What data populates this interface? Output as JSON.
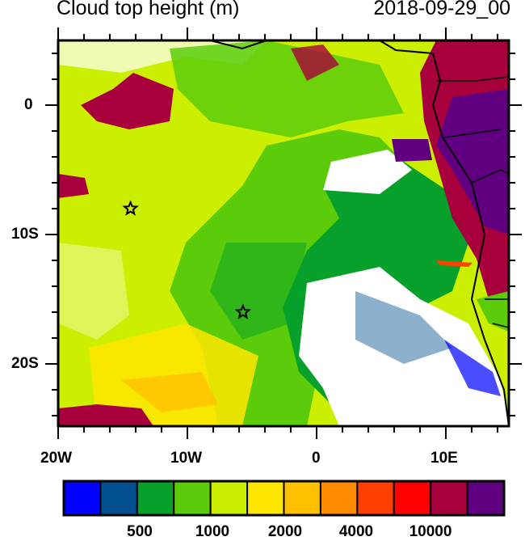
{
  "title": "Cloud top height (m)",
  "timestamp": "2018-09-29_00",
  "map": {
    "region": {
      "lon_range": [
        -20,
        15
      ],
      "lat_range": [
        -25,
        5
      ]
    },
    "x_tick_labels": [
      "20W",
      "10W",
      "0",
      "10E"
    ],
    "y_tick_labels": [
      "0",
      "10S",
      "20S"
    ],
    "markers": [
      {
        "type": "star",
        "lon": -14.4,
        "lat": -8.0
      },
      {
        "type": "star",
        "lon": -5.7,
        "lat": -16.0
      }
    ]
  },
  "colorbar": {
    "colors": [
      "#0000ff",
      "#02508f",
      "#06a02a",
      "#5ccc0a",
      "#ccee00",
      "#ffe600",
      "#ffc000",
      "#ff8c00",
      "#ff4000",
      "#ff0000",
      "#a8003c",
      "#600080"
    ],
    "labels": [
      "500",
      "1000",
      "2000",
      "4000",
      "10000"
    ]
  }
}
